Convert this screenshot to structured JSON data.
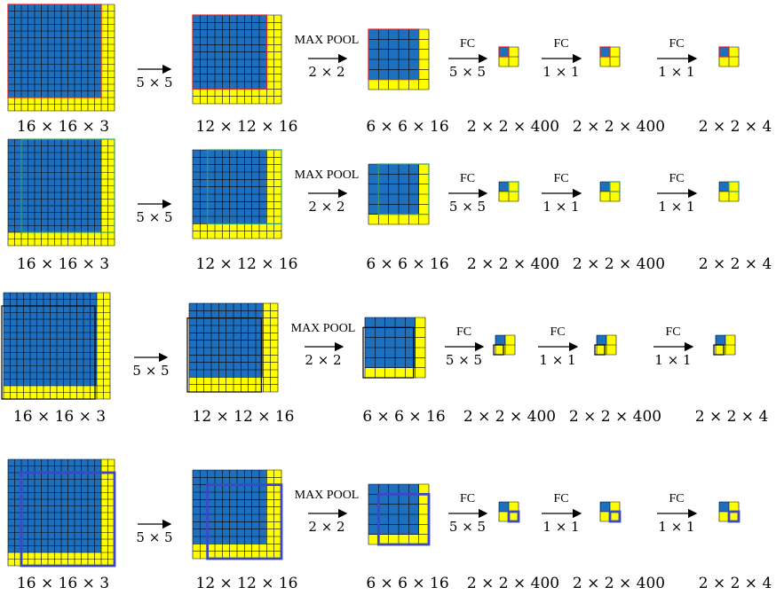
{
  "colors": {
    "blue": "#1f6fbf",
    "yellow": "#ffff00",
    "grid_line": "#000000",
    "red_window": "#e02020",
    "green_window": "#2e9e6e",
    "black_window": "#000000",
    "purple_window": "#3a48c8"
  },
  "ops": {
    "conv": "5 × 5",
    "pool_title": "MAX POOL",
    "pool_size": "2 × 2",
    "fc": "FC",
    "fc1_size": "5 × 5",
    "fc2_size": "1 × 1",
    "fc3_size": "1 × 1"
  },
  "labels": {
    "input": "16 × 16 × 3",
    "conv_out": "12 × 12 × 16",
    "pool_out": "6 × 6 × 16",
    "fc1_out": "2 × 2 × 400",
    "fc2_out": "2 × 2 × 400",
    "fc3_out": "2 × 2 × 4"
  },
  "rows": [
    {
      "name": "row-1",
      "window_color": "red"
    },
    {
      "name": "row-2",
      "window_color": "green"
    },
    {
      "name": "row-3",
      "window_color": "black"
    },
    {
      "name": "row-4",
      "window_color": "purple"
    }
  ]
}
